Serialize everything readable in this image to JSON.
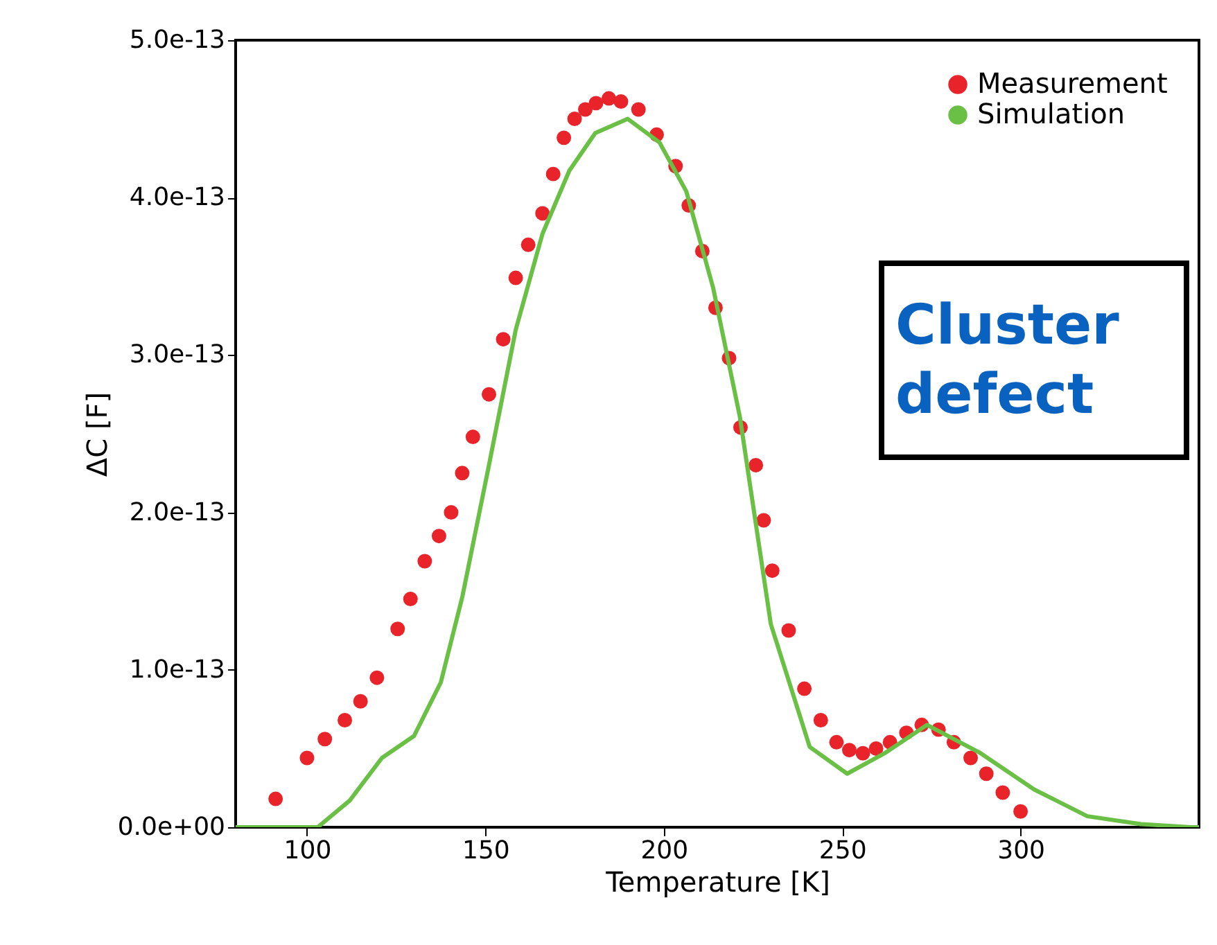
{
  "chart_data": {
    "type": "scatter",
    "xlabel": "Temperature [K]",
    "ylabel": "ΔC [F]",
    "xlim": [
      80,
      350
    ],
    "xticks": [
      100,
      150,
      200,
      250,
      300
    ],
    "ylim": [
      0,
      5e-13
    ],
    "yticks": [
      {
        "value": 0,
        "label": "0.0e+00"
      },
      {
        "value": 1e-13,
        "label": "1.0e-13"
      },
      {
        "value": 2e-13,
        "label": "2.0e-13"
      },
      {
        "value": 3e-13,
        "label": "3.0e-13"
      },
      {
        "value": 4e-13,
        "label": "4.0e-13"
      },
      {
        "value": 5e-13,
        "label": "5.0e-13"
      }
    ],
    "legend": "top right",
    "annotations": [
      "Cluster defect"
    ],
    "series": [
      {
        "name": "Measurement",
        "marker": "circle",
        "color": "#e8232a",
        "x": [
          91.2,
          100,
          105,
          110.6,
          115,
          119.6,
          125.4,
          129,
          133,
          137,
          140.4,
          143.5,
          146.5,
          151,
          155,
          158.5,
          162,
          166,
          169,
          172,
          175,
          178,
          181,
          184.6,
          188,
          192.9,
          198,
          203.3,
          207,
          210.8,
          214.5,
          218.3,
          221.5,
          225.8,
          228,
          230.4,
          235,
          239.4,
          244,
          248.4,
          252,
          255.8,
          259.5,
          263.4,
          268,
          272.3,
          277,
          281.3,
          286,
          290.4,
          295,
          300
        ],
        "values": [
          1.8e-14,
          4.4e-14,
          5.6e-14,
          6.8e-14,
          8e-14,
          9.5e-14,
          1.26e-13,
          1.45e-13,
          1.69e-13,
          1.85e-13,
          2e-13,
          2.25e-13,
          2.48e-13,
          2.75e-13,
          3.1e-13,
          3.49e-13,
          3.7e-13,
          3.9e-13,
          4.15e-13,
          4.38e-13,
          4.5e-13,
          4.56e-13,
          4.6e-13,
          4.63e-13,
          4.61e-13,
          4.56e-13,
          4.4e-13,
          4.2e-13,
          3.95e-13,
          3.66e-13,
          3.3e-13,
          2.98e-13,
          2.54e-13,
          2.3e-13,
          1.95e-13,
          1.63e-13,
          1.25e-13,
          8.8e-14,
          6.8e-14,
          5.4e-14,
          4.9e-14,
          4.7e-14,
          5e-14,
          5.4e-14,
          6e-14,
          6.5e-14,
          6.2e-14,
          5.4e-14,
          4.4e-14,
          3.4e-14,
          2.2e-14,
          1e-14
        ]
      },
      {
        "name": "Simulation",
        "type": "line",
        "color": "#6abf45",
        "x": [
          80,
          103,
          112,
          121,
          130,
          137.5,
          143.5,
          151,
          158.5,
          166,
          173.5,
          180.8,
          189.9,
          198.8,
          206.3,
          213.8,
          221.3,
          230,
          240.9,
          251.4,
          261.9,
          273.8,
          288.8,
          303.8,
          318.7,
          333.7,
          347.7,
          350
        ],
        "values": [
          0,
          0,
          1.7e-14,
          4.4e-14,
          5.8e-14,
          9.2e-14,
          1.46e-13,
          2.3e-13,
          3.16e-13,
          3.77e-13,
          4.17e-13,
          4.41e-13,
          4.5e-13,
          4.35e-13,
          4.04e-13,
          3.43e-13,
          2.61e-13,
          1.29e-13,
          5.1e-14,
          3.4e-14,
          4.7e-14,
          6.5e-14,
          4.7e-14,
          2.4e-14,
          7e-15,
          2e-15,
          0,
          0
        ]
      }
    ]
  }
}
